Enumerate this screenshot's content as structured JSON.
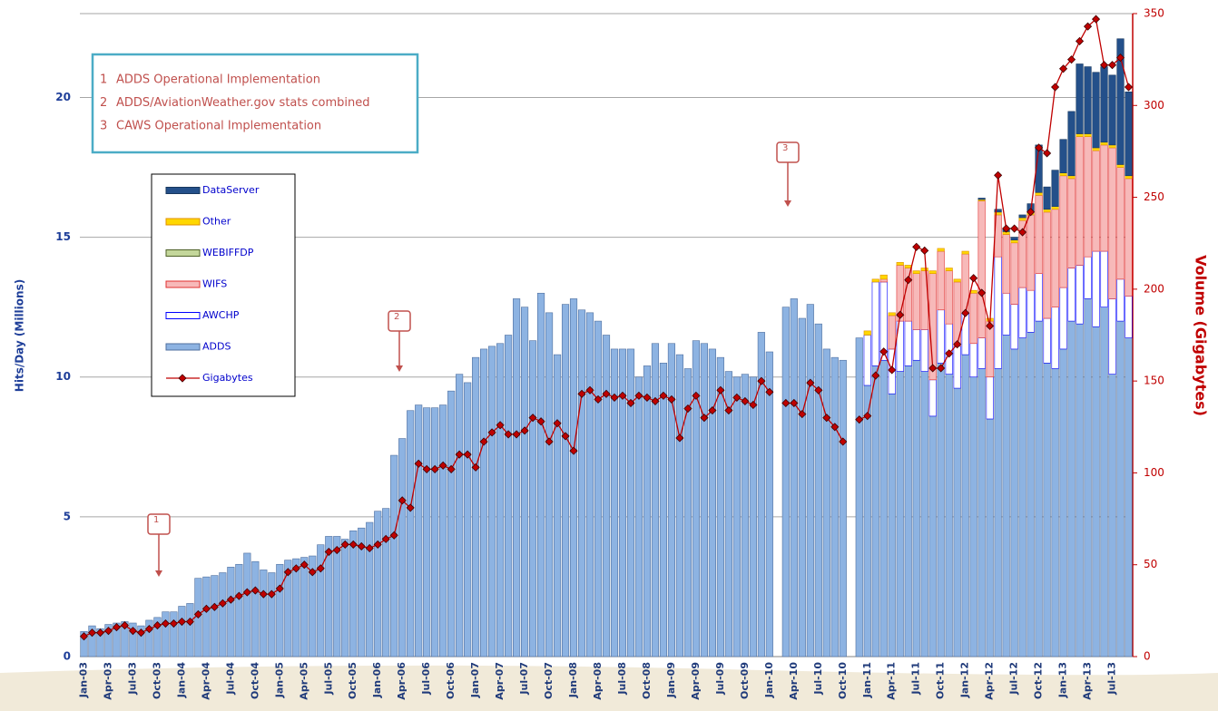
{
  "chart_data": {
    "type": "stacked_bar_line",
    "y_label": "Hits/Day (Millions)",
    "y2_label": "Volume (Gigabytes)",
    "annotations": [
      {
        "number": "1",
        "text": "ADDS Operational Implementation"
      },
      {
        "number": "2",
        "text": "ADDS/AviationWeather.gov stats combined"
      },
      {
        "number": "3",
        "text": "CAWS Operational Implementation"
      }
    ],
    "ylim": [
      0,
      23
    ],
    "yticks": [
      0,
      5,
      10,
      15,
      20
    ],
    "y2lim": [
      0,
      350
    ],
    "y2ticks": [
      0,
      50,
      100,
      150,
      200,
      250,
      300,
      350
    ],
    "grid": true,
    "categories": [
      "Jan-03",
      null,
      null,
      "Apr-03",
      null,
      null,
      "Jul-03",
      null,
      null,
      "Oct-03",
      null,
      null,
      "Jan-04",
      null,
      null,
      "Apr-04",
      null,
      null,
      "Jul-04",
      null,
      null,
      "Oct-04",
      null,
      null,
      "Jan-05",
      null,
      null,
      "Apr-05",
      null,
      null,
      "Jul-05",
      null,
      null,
      "Oct-05",
      null,
      null,
      "Jan-06",
      null,
      null,
      "Apr-06",
      null,
      null,
      "Jul-06",
      null,
      null,
      "Oct-06",
      null,
      null,
      "Jan-07",
      null,
      null,
      "Apr-07",
      null,
      null,
      "Jul-07",
      null,
      null,
      "Oct-07",
      null,
      null,
      "Jan-08",
      null,
      null,
      "Apr-08",
      null,
      null,
      "Jul-08",
      null,
      null,
      "Oct-08",
      null,
      null,
      "Jan-09",
      null,
      null,
      "Apr-09",
      null,
      null,
      "Jul-09",
      null,
      null,
      "Oct-09",
      null,
      null,
      "Jan-10",
      null,
      null,
      "Apr-10",
      null,
      null,
      "Jul-10",
      null,
      null,
      "Oct-10",
      null,
      null,
      "Jan-11",
      null,
      null,
      "Apr-11",
      null,
      null,
      "Jul-11",
      null,
      null,
      "Oct-11",
      null,
      null,
      "Jan-12",
      null,
      null,
      "Apr-12",
      null,
      null,
      "Jul-12",
      null,
      null,
      "Oct-12",
      null,
      null,
      "Jan-13",
      null,
      null,
      "Apr-13",
      null,
      null,
      "Jul-13",
      null,
      null
    ],
    "series": [
      {
        "name": "ADDS",
        "color": "#8db3e2",
        "edge": "#4f6f9f",
        "values": [
          0.9,
          1.1,
          1.0,
          1.15,
          1.2,
          1.25,
          1.2,
          1.1,
          1.3,
          1.4,
          1.6,
          1.6,
          1.8,
          1.9,
          2.8,
          2.85,
          2.9,
          3.0,
          3.2,
          3.3,
          3.7,
          3.4,
          3.1,
          3.0,
          3.3,
          3.45,
          3.5,
          3.55,
          3.6,
          4.0,
          4.3,
          4.3,
          4.2,
          4.5,
          4.6,
          4.8,
          5.2,
          5.3,
          7.2,
          7.8,
          8.8,
          9.0,
          8.9,
          8.9,
          9.0,
          9.5,
          10.1,
          9.8,
          10.7,
          11.0,
          11.1,
          11.2,
          11.5,
          12.8,
          12.5,
          11.3,
          13.0,
          12.3,
          10.8,
          12.6,
          12.8,
          12.4,
          12.3,
          12.0,
          11.5,
          11.0,
          11.0,
          11.0,
          10.0,
          10.4,
          11.2,
          10.5,
          11.2,
          10.8,
          10.3,
          11.3,
          11.2,
          11.0,
          10.7,
          10.2,
          10.0,
          10.1,
          10.0,
          11.6,
          10.9,
          null,
          12.5,
          12.8,
          12.1,
          12.6,
          11.9,
          11.0,
          10.7,
          10.6,
          null,
          11.4,
          9.7,
          10.4,
          10.6,
          9.4,
          10.2,
          10.4,
          10.6,
          10.2,
          8.6,
          10.5,
          10.1,
          9.6,
          10.8,
          10.0,
          10.3,
          8.5,
          10.3,
          11.5,
          11.0,
          11.4,
          11.6,
          12.0,
          10.5,
          10.3,
          11.0,
          12.0,
          11.9,
          12.8,
          11.8,
          12.5,
          10.1,
          12.0,
          11.4
        ]
      },
      {
        "name": "AWCHP",
        "color": "#ffffff",
        "edge": "#0000ff",
        "values": [
          null,
          null,
          null,
          null,
          null,
          null,
          null,
          null,
          null,
          null,
          null,
          null,
          null,
          null,
          null,
          null,
          null,
          null,
          null,
          null,
          null,
          null,
          null,
          null,
          null,
          null,
          null,
          null,
          null,
          null,
          null,
          null,
          null,
          null,
          null,
          null,
          null,
          null,
          null,
          null,
          null,
          null,
          null,
          null,
          null,
          null,
          null,
          null,
          null,
          null,
          null,
          null,
          null,
          null,
          null,
          null,
          null,
          null,
          null,
          null,
          null,
          null,
          null,
          null,
          null,
          null,
          null,
          null,
          null,
          null,
          null,
          null,
          null,
          null,
          null,
          null,
          null,
          null,
          null,
          null,
          null,
          null,
          null,
          null,
          null,
          null,
          null,
          null,
          null,
          null,
          null,
          null,
          null,
          null,
          null,
          null,
          1.8,
          3.0,
          2.8,
          1.6,
          1.8,
          1.6,
          1.1,
          1.5,
          1.3,
          1.9,
          1.8,
          1.5,
          1.5,
          1.2,
          1.1,
          1.5,
          4.0,
          1.5,
          1.6,
          1.8,
          1.5,
          1.7,
          1.6,
          2.2,
          2.2,
          1.9,
          2.1,
          1.5,
          2.7,
          2.0,
          2.7,
          1.5,
          1.5
        ]
      },
      {
        "name": "WIFS",
        "color": "#f7b9b9",
        "edge": "#e03030",
        "values": [
          null,
          null,
          null,
          null,
          null,
          null,
          null,
          null,
          null,
          null,
          null,
          null,
          null,
          null,
          null,
          null,
          null,
          null,
          null,
          null,
          null,
          null,
          null,
          null,
          null,
          null,
          null,
          null,
          null,
          null,
          null,
          null,
          null,
          null,
          null,
          null,
          null,
          null,
          null,
          null,
          null,
          null,
          null,
          null,
          null,
          null,
          null,
          null,
          null,
          null,
          null,
          null,
          null,
          null,
          null,
          null,
          null,
          null,
          null,
          null,
          null,
          null,
          null,
          null,
          null,
          null,
          null,
          null,
          null,
          null,
          null,
          null,
          null,
          null,
          null,
          null,
          null,
          null,
          null,
          null,
          null,
          null,
          null,
          null,
          null,
          null,
          null,
          null,
          null,
          null,
          null,
          null,
          null,
          null,
          null,
          null,
          0,
          0,
          0.1,
          1.2,
          2.0,
          1.9,
          2.0,
          2.1,
          3.8,
          2.1,
          1.9,
          2.3,
          2.1,
          1.8,
          4.9,
          2.0,
          1.5,
          2.1,
          2.2,
          2.4,
          2.7,
          2.8,
          3.8,
          3.5,
          4.0,
          3.2,
          4.6,
          4.3,
          3.6,
          3.8,
          5.4,
          4.0,
          4.2
        ]
      },
      {
        "name": "WEBIFFDP",
        "color": "#c4d79b",
        "edge": "#4f6228",
        "values": [
          null,
          null,
          null,
          null,
          null,
          null,
          null,
          null,
          null,
          null,
          null,
          null,
          null,
          null,
          null,
          null,
          null,
          null,
          null,
          null,
          null,
          null,
          null,
          null,
          null,
          null,
          null,
          null,
          null,
          null,
          null,
          null,
          null,
          null,
          null,
          null,
          null,
          null,
          null,
          null,
          null,
          null,
          null,
          null,
          null,
          null,
          null,
          null,
          null,
          null,
          null,
          null,
          null,
          null,
          null,
          null,
          null,
          null,
          null,
          null,
          null,
          null,
          null,
          null,
          null,
          null,
          null,
          null,
          null,
          null,
          null,
          null,
          null,
          null,
          null,
          null,
          null,
          null,
          null,
          null,
          null,
          null,
          null,
          null,
          null,
          null,
          null,
          null,
          null,
          null,
          null,
          null,
          null,
          null,
          null,
          null,
          0,
          0,
          0,
          0,
          0,
          0,
          0,
          0,
          0,
          0,
          0,
          0,
          0,
          0,
          0,
          0,
          0,
          0,
          0,
          0,
          0,
          0,
          0,
          0,
          0,
          0,
          0,
          0,
          0,
          0,
          0,
          0,
          0
        ]
      },
      {
        "name": "Other",
        "color": "#ffd700",
        "edge": "#e09000",
        "values": [
          null,
          null,
          null,
          null,
          null,
          null,
          null,
          null,
          null,
          null,
          null,
          null,
          null,
          null,
          null,
          null,
          null,
          null,
          null,
          null,
          null,
          null,
          null,
          null,
          null,
          null,
          null,
          null,
          null,
          null,
          null,
          null,
          null,
          null,
          null,
          null,
          null,
          null,
          null,
          null,
          null,
          null,
          null,
          null,
          null,
          null,
          null,
          null,
          null,
          null,
          null,
          null,
          null,
          null,
          null,
          null,
          null,
          null,
          null,
          null,
          null,
          null,
          null,
          null,
          null,
          null,
          null,
          null,
          null,
          null,
          null,
          null,
          null,
          null,
          null,
          null,
          null,
          null,
          null,
          null,
          null,
          null,
          null,
          null,
          null,
          null,
          null,
          null,
          null,
          null,
          null,
          null,
          null,
          null,
          null,
          null,
          0.15,
          0.1,
          0.15,
          0.1,
          0.1,
          0.1,
          0.1,
          0.1,
          0.1,
          0.1,
          0.1,
          0.1,
          0.1,
          0.1,
          0.05,
          0.1,
          0.1,
          0.1,
          0.1,
          0.1,
          0.1,
          0.1,
          0.1,
          0.1,
          0.1,
          0.1,
          0.1,
          0.1,
          0.1,
          0.1,
          0.1,
          0.1,
          0.1
        ]
      },
      {
        "name": "DataServer",
        "color": "#24508a",
        "edge": "#17375e",
        "values": [
          null,
          null,
          null,
          null,
          null,
          null,
          null,
          null,
          null,
          null,
          null,
          null,
          null,
          null,
          null,
          null,
          null,
          null,
          null,
          null,
          null,
          null,
          null,
          null,
          null,
          null,
          null,
          null,
          null,
          null,
          null,
          null,
          null,
          null,
          null,
          null,
          null,
          null,
          null,
          null,
          null,
          null,
          null,
          null,
          null,
          null,
          null,
          null,
          null,
          null,
          null,
          null,
          null,
          null,
          null,
          null,
          null,
          null,
          null,
          null,
          null,
          null,
          null,
          null,
          null,
          null,
          null,
          null,
          null,
          null,
          null,
          null,
          null,
          null,
          null,
          null,
          null,
          null,
          null,
          null,
          null,
          null,
          null,
          null,
          null,
          null,
          null,
          null,
          null,
          null,
          null,
          null,
          null,
          null,
          null,
          null,
          0,
          0,
          0,
          0,
          0,
          0,
          0,
          0,
          0,
          0,
          0,
          0,
          0,
          0,
          0.05,
          0,
          0.1,
          0.1,
          0.1,
          0.1,
          0.3,
          1.7,
          0.8,
          1.3,
          1.2,
          2.3,
          2.5,
          2.4,
          2.7,
          2.7,
          2.5,
          4.5,
          3.0
        ]
      },
      {
        "name": "Gigabytes",
        "color": "#c00000",
        "axis": "y2",
        "values": [
          11,
          13,
          13,
          14,
          16,
          17,
          14,
          13,
          15,
          17,
          18,
          18,
          19,
          19,
          23,
          26,
          27,
          29,
          31,
          33,
          35,
          36,
          34,
          34,
          37,
          46,
          48,
          50,
          46,
          48,
          57,
          58,
          61,
          61,
          60,
          59,
          61,
          64,
          66,
          85,
          81,
          105,
          102,
          102,
          104,
          102,
          110,
          110,
          103,
          117,
          122,
          126,
          121,
          121,
          123,
          130,
          128,
          117,
          127,
          120,
          112,
          143,
          145,
          140,
          143,
          141,
          142,
          138,
          142,
          141,
          139,
          142,
          140,
          119,
          135,
          142,
          130,
          134,
          145,
          134,
          141,
          139,
          137,
          150,
          144,
          null,
          138,
          138,
          132,
          149,
          145,
          130,
          125,
          117,
          null,
          129,
          131,
          153,
          166,
          156,
          186,
          205,
          223,
          221,
          157,
          157,
          165,
          170,
          187,
          206,
          198,
          180,
          262,
          233,
          233,
          231,
          242,
          277,
          274,
          310,
          320,
          325,
          335,
          343,
          347,
          322,
          322,
          326,
          310
        ]
      }
    ]
  }
}
